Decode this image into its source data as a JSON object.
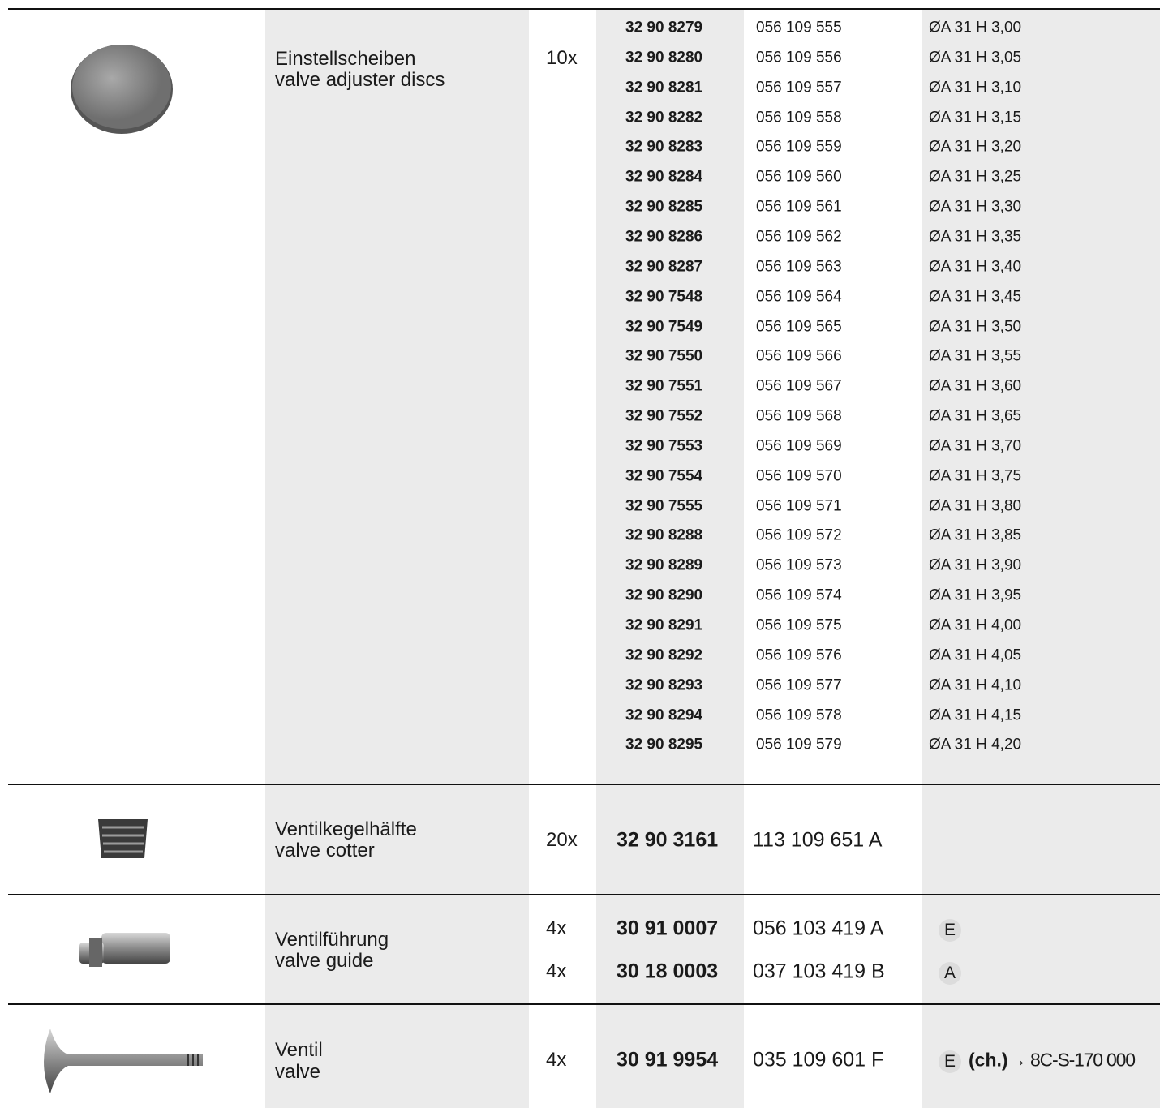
{
  "sections": [
    {
      "description": [
        "Einstellscheiben",
        "valve adjuster discs"
      ],
      "quantity": "10x",
      "rows": [
        {
          "part": "32 90 8279",
          "oe": "056 109 555",
          "spec": "ØA 31 H 3,00"
        },
        {
          "part": "32 90 8280",
          "oe": "056 109 556",
          "spec": "ØA 31 H 3,05"
        },
        {
          "part": "32 90 8281",
          "oe": "056 109 557",
          "spec": "ØA 31 H 3,10"
        },
        {
          "part": "32 90 8282",
          "oe": "056 109 558",
          "spec": "ØA 31 H 3,15"
        },
        {
          "part": "32 90 8283",
          "oe": "056 109 559",
          "spec": "ØA 31 H 3,20"
        },
        {
          "part": "32 90 8284",
          "oe": "056 109 560",
          "spec": "ØA 31 H 3,25"
        },
        {
          "part": "32 90 8285",
          "oe": "056 109 561",
          "spec": "ØA 31 H 3,30"
        },
        {
          "part": "32 90 8286",
          "oe": "056 109 562",
          "spec": "ØA 31 H 3,35"
        },
        {
          "part": "32 90 8287",
          "oe": "056 109 563",
          "spec": "ØA 31 H 3,40"
        },
        {
          "part": "32 90 7548",
          "oe": "056 109 564",
          "spec": "ØA 31 H 3,45"
        },
        {
          "part": "32 90 7549",
          "oe": "056 109 565",
          "spec": "ØA 31 H 3,50"
        },
        {
          "part": "32 90 7550",
          "oe": "056 109 566",
          "spec": "ØA 31 H 3,55"
        },
        {
          "part": "32 90 7551",
          "oe": "056 109 567",
          "spec": "ØA 31 H 3,60"
        },
        {
          "part": "32 90 7552",
          "oe": "056 109 568",
          "spec": "ØA 31 H 3,65"
        },
        {
          "part": "32 90 7553",
          "oe": "056 109 569",
          "spec": "ØA 31 H 3,70"
        },
        {
          "part": "32 90 7554",
          "oe": "056 109 570",
          "spec": "ØA 31 H 3,75"
        },
        {
          "part": "32 90 7555",
          "oe": "056 109 571",
          "spec": "ØA 31 H 3,80"
        },
        {
          "part": "32 90 8288",
          "oe": "056 109 572",
          "spec": "ØA 31 H 3,85"
        },
        {
          "part": "32 90 8289",
          "oe": "056 109 573",
          "spec": "ØA 31 H 3,90"
        },
        {
          "part": "32 90 8290",
          "oe": "056 109 574",
          "spec": "ØA 31 H 3,95"
        },
        {
          "part": "32 90 8291",
          "oe": "056 109 575",
          "spec": "ØA 31 H 4,00"
        },
        {
          "part": "32 90 8292",
          "oe": "056 109 576",
          "spec": "ØA 31 H 4,05"
        },
        {
          "part": "32 90 8293",
          "oe": "056 109 577",
          "spec": "ØA 31 H 4,10"
        },
        {
          "part": "32 90 8294",
          "oe": "056 109 578",
          "spec": "ØA 31 H 4,15"
        },
        {
          "part": "32 90 8295",
          "oe": "056 109 579",
          "spec": "ØA 31 H 4,20"
        }
      ]
    },
    {
      "description": [
        "Ventilkegelhälfte",
        "valve cotter"
      ],
      "rows": [
        {
          "quantity": "20x",
          "part": "32 90 3161",
          "oe": "113 109 651 A"
        }
      ]
    },
    {
      "description": [
        "Ventilführung",
        "valve guide"
      ],
      "rows": [
        {
          "quantity": "4x",
          "part": "30 91 0007",
          "oe": "056 103 419 A",
          "badge": "E"
        },
        {
          "quantity": "4x",
          "part": "30 18 0003",
          "oe": "037 103 419 B",
          "badge": "A"
        }
      ]
    },
    {
      "description": [
        "Ventil",
        "valve"
      ],
      "rows": [
        {
          "quantity": "4x",
          "part": "30 91 9954",
          "oe": "035 109 601 F",
          "badge": "E",
          "note": "(ch.)",
          "ref": "→ 8C-S-170 000"
        }
      ]
    }
  ]
}
